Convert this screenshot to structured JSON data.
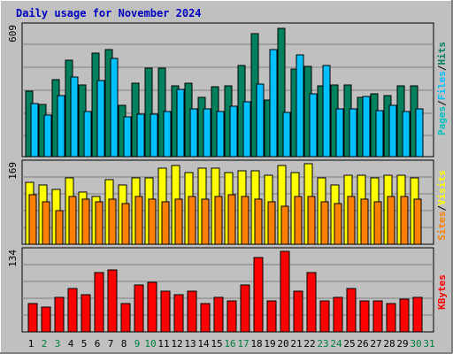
{
  "title": "Daily usage for November 2024",
  "colors": {
    "title": "#0000c0",
    "hits": "#00805c",
    "files": "#00c0ff",
    "pages": "#00c0c0",
    "visits": "#ffff00",
    "sites": "#ff8000",
    "kbytes": "#ff0000",
    "weekday_label": "#000000",
    "weekend_label": "#008040"
  },
  "chart_data": [
    {
      "type": "bar",
      "panel": "hits-files-pages",
      "ymax_label": "609",
      "legend": [
        "Pages",
        "Files",
        "Hits"
      ],
      "series": [
        {
          "name": "Hits",
          "values": [
            305,
            245,
            360,
            450,
            335,
            485,
            500,
            240,
            345,
            415,
            415,
            330,
            345,
            275,
            325,
            330,
            425,
            575,
            265,
            600,
            410,
            420,
            330,
            335,
            335,
            275,
            295,
            285,
            330,
            330
          ]
        },
        {
          "name": "Files",
          "values": [
            250,
            195,
            285,
            370,
            210,
            355,
            460,
            185,
            200,
            200,
            210,
            315,
            225,
            225,
            210,
            235,
            255,
            340,
            500,
            205,
            475,
            295,
            425,
            225,
            225,
            280,
            215,
            240,
            210,
            225
          ]
        },
        {
          "name": "Pages",
          "values": [
            0,
            0,
            0,
            0,
            0,
            0,
            0,
            0,
            0,
            0,
            0,
            0,
            0,
            0,
            0,
            0,
            0,
            0,
            0,
            0,
            0,
            0,
            0,
            0,
            0,
            0,
            0,
            0,
            0,
            0
          ]
        }
      ]
    },
    {
      "type": "bar",
      "panel": "visits-sites",
      "ymax_label": "169",
      "legend": [
        "Sites",
        "Visits"
      ],
      "series": [
        {
          "name": "Visits",
          "values": [
            130,
            125,
            115,
            140,
            110,
            100,
            135,
            125,
            140,
            140,
            160,
            165,
            150,
            160,
            160,
            150,
            155,
            155,
            145,
            165,
            150,
            170,
            140,
            125,
            145,
            145,
            140,
            145,
            145,
            140
          ]
        },
        {
          "name": "Sites",
          "values": [
            105,
            90,
            70,
            100,
            95,
            90,
            95,
            85,
            100,
            95,
            90,
            95,
            100,
            95,
            100,
            105,
            100,
            95,
            90,
            80,
            100,
            100,
            90,
            85,
            100,
            95,
            90,
            100,
            100,
            95
          ]
        }
      ]
    },
    {
      "type": "bar",
      "panel": "kbytes",
      "ymax_label": "134",
      "legend": [
        "KBytes"
      ],
      "series": [
        {
          "name": "KBytes",
          "values": [
            45,
            40,
            55,
            70,
            60,
            95,
            100,
            45,
            75,
            80,
            65,
            60,
            65,
            45,
            55,
            50,
            75,
            120,
            50,
            130,
            65,
            95,
            50,
            55,
            70,
            50,
            50,
            45,
            52,
            55
          ]
        }
      ]
    }
  ],
  "x_labels": [
    "1",
    "2",
    "3",
    "4",
    "5",
    "6",
    "7",
    "8",
    "9",
    "10",
    "11",
    "12",
    "13",
    "14",
    "15",
    "16",
    "17",
    "18",
    "19",
    "20",
    "21",
    "22",
    "23",
    "24",
    "25",
    "26",
    "27",
    "28",
    "29",
    "30",
    "31"
  ],
  "weekend_days": [
    2,
    3,
    9,
    10,
    16,
    17,
    23,
    24,
    30,
    31
  ]
}
